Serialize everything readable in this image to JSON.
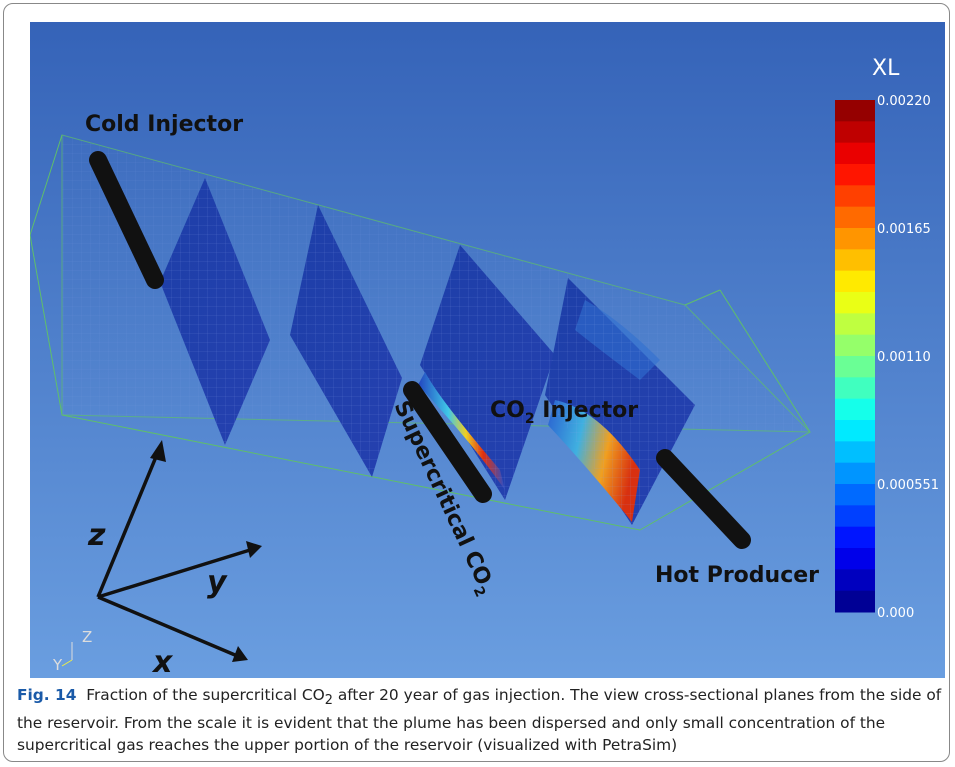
{
  "figure": {
    "colorbar": {
      "title": "XL",
      "labels": [
        "0.00220",
        "0.00165",
        "0.00110",
        "0.000551",
        "0.000"
      ]
    },
    "labels": {
      "cold_injector": "Cold Injector",
      "co2_injector": {
        "text": "CO",
        "sub": "2",
        "rest": " Injector"
      },
      "supercritical": {
        "text": "Supercritical CO",
        "sub": "2"
      },
      "hot_producer": "Hot Producer"
    },
    "axes": {
      "z": "z",
      "y": "y",
      "x": "x"
    },
    "mini_axes": {
      "z": "Z",
      "y": "Y"
    }
  },
  "caption": {
    "label": "Fig. 14",
    "text": "Fraction of the supercritical CO",
    "sub": "2",
    "rest": " after 20 year of gas injection. The view cross-sectional planes from the side of the reservoir. From the scale it is evident that the plume has been dispersed and only small concentration of the supercritical gas reaches the upper portion of the reservoir (visualized with PetraSim)"
  }
}
